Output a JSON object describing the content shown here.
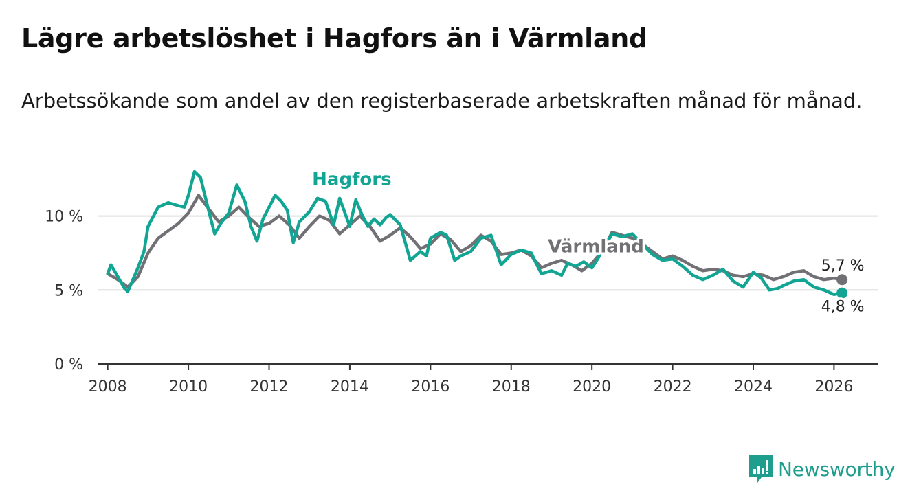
{
  "title": "Lägre arbetslöshet i Hagfors än i Värmland",
  "subtitle": "Arbetssökande som andel av den registerbaserade arbetskraften månad för månad.",
  "brand": "Newsworthy",
  "colors": {
    "hagfors": "#12a594",
    "varmland": "#707075",
    "grid": "#dddddd",
    "axis": "#333333",
    "brand": "#1f9e8e"
  },
  "chart_data": {
    "type": "line",
    "xlabel": "",
    "ylabel": "",
    "xlim": [
      2007.75,
      2027.1
    ],
    "ylim": [
      0,
      13
    ],
    "xticks": [
      2008,
      2010,
      2012,
      2014,
      2016,
      2018,
      2020,
      2022,
      2024,
      2026
    ],
    "xtick_labels": [
      "2008",
      "2010",
      "2012",
      "2014",
      "2016",
      "2018",
      "2020",
      "2022",
      "2024",
      "2026"
    ],
    "yticks": [
      0,
      5,
      10
    ],
    "ytick_labels": [
      "0 %",
      "5 %",
      "10 %"
    ],
    "series": [
      {
        "name": "Värmland",
        "label": "Värmland",
        "end_label": "5,7 %",
        "end_value": 5.7,
        "points": [
          [
            2008.0,
            6.1
          ],
          [
            2008.25,
            5.7
          ],
          [
            2008.5,
            5.2
          ],
          [
            2008.75,
            5.9
          ],
          [
            2009.0,
            7.5
          ],
          [
            2009.25,
            8.5
          ],
          [
            2009.5,
            9.0
          ],
          [
            2009.75,
            9.5
          ],
          [
            2010.0,
            10.2
          ],
          [
            2010.25,
            11.4
          ],
          [
            2010.5,
            10.5
          ],
          [
            2010.75,
            9.6
          ],
          [
            2011.0,
            10.0
          ],
          [
            2011.25,
            10.6
          ],
          [
            2011.5,
            9.9
          ],
          [
            2011.75,
            9.3
          ],
          [
            2012.0,
            9.5
          ],
          [
            2012.25,
            10.0
          ],
          [
            2012.5,
            9.4
          ],
          [
            2012.75,
            8.5
          ],
          [
            2013.0,
            9.3
          ],
          [
            2013.25,
            10.0
          ],
          [
            2013.5,
            9.7
          ],
          [
            2013.75,
            8.8
          ],
          [
            2014.0,
            9.4
          ],
          [
            2014.25,
            10.0
          ],
          [
            2014.5,
            9.3
          ],
          [
            2014.75,
            8.3
          ],
          [
            2015.0,
            8.7
          ],
          [
            2015.25,
            9.2
          ],
          [
            2015.5,
            8.6
          ],
          [
            2015.75,
            7.8
          ],
          [
            2016.0,
            8.1
          ],
          [
            2016.25,
            8.8
          ],
          [
            2016.5,
            8.4
          ],
          [
            2016.75,
            7.6
          ],
          [
            2017.0,
            8.0
          ],
          [
            2017.25,
            8.7
          ],
          [
            2017.5,
            8.3
          ],
          [
            2017.75,
            7.4
          ],
          [
            2018.0,
            7.5
          ],
          [
            2018.25,
            7.7
          ],
          [
            2018.5,
            7.3
          ],
          [
            2018.75,
            6.5
          ],
          [
            2019.0,
            6.8
          ],
          [
            2019.25,
            7.0
          ],
          [
            2019.5,
            6.7
          ],
          [
            2019.75,
            6.3
          ],
          [
            2020.0,
            6.8
          ],
          [
            2020.25,
            7.6
          ],
          [
            2020.5,
            8.9
          ],
          [
            2020.75,
            8.7
          ],
          [
            2021.0,
            8.5
          ],
          [
            2021.25,
            8.1
          ],
          [
            2021.5,
            7.6
          ],
          [
            2021.75,
            7.1
          ],
          [
            2022.0,
            7.3
          ],
          [
            2022.25,
            7.0
          ],
          [
            2022.5,
            6.6
          ],
          [
            2022.75,
            6.3
          ],
          [
            2023.0,
            6.4
          ],
          [
            2023.25,
            6.3
          ],
          [
            2023.5,
            6.0
          ],
          [
            2023.75,
            5.9
          ],
          [
            2024.0,
            6.1
          ],
          [
            2024.25,
            6.0
          ],
          [
            2024.5,
            5.7
          ],
          [
            2024.75,
            5.9
          ],
          [
            2025.0,
            6.2
          ],
          [
            2025.25,
            6.3
          ],
          [
            2025.5,
            5.9
          ],
          [
            2025.75,
            5.7
          ],
          [
            2026.0,
            5.8
          ],
          [
            2026.2,
            5.7
          ]
        ]
      },
      {
        "name": "Hagfors",
        "label": "Hagfors",
        "end_label": "4,8 %",
        "end_value": 4.8,
        "points": [
          [
            2008.0,
            6.1
          ],
          [
            2008.08,
            6.7
          ],
          [
            2008.25,
            5.9
          ],
          [
            2008.42,
            5.1
          ],
          [
            2008.5,
            4.9
          ],
          [
            2008.75,
            6.5
          ],
          [
            2008.9,
            7.6
          ],
          [
            2009.0,
            9.3
          ],
          [
            2009.25,
            10.6
          ],
          [
            2009.5,
            10.9
          ],
          [
            2009.75,
            10.7
          ],
          [
            2009.9,
            10.6
          ],
          [
            2010.0,
            11.4
          ],
          [
            2010.15,
            13.0
          ],
          [
            2010.3,
            12.6
          ],
          [
            2010.5,
            10.4
          ],
          [
            2010.65,
            8.8
          ],
          [
            2010.8,
            9.5
          ],
          [
            2011.0,
            10.2
          ],
          [
            2011.2,
            12.1
          ],
          [
            2011.4,
            11.0
          ],
          [
            2011.55,
            9.3
          ],
          [
            2011.7,
            8.3
          ],
          [
            2011.85,
            9.8
          ],
          [
            2012.0,
            10.6
          ],
          [
            2012.15,
            11.4
          ],
          [
            2012.3,
            11.0
          ],
          [
            2012.45,
            10.4
          ],
          [
            2012.6,
            8.2
          ],
          [
            2012.75,
            9.6
          ],
          [
            2013.0,
            10.3
          ],
          [
            2013.2,
            11.2
          ],
          [
            2013.4,
            11.0
          ],
          [
            2013.6,
            9.4
          ],
          [
            2013.75,
            11.2
          ],
          [
            2014.0,
            9.3
          ],
          [
            2014.15,
            11.1
          ],
          [
            2014.3,
            10.1
          ],
          [
            2014.45,
            9.3
          ],
          [
            2014.6,
            9.8
          ],
          [
            2014.75,
            9.4
          ],
          [
            2014.9,
            9.9
          ],
          [
            2015.0,
            10.1
          ],
          [
            2015.25,
            9.4
          ],
          [
            2015.5,
            7.0
          ],
          [
            2015.75,
            7.6
          ],
          [
            2015.9,
            7.3
          ],
          [
            2016.0,
            8.5
          ],
          [
            2016.25,
            8.9
          ],
          [
            2016.4,
            8.7
          ],
          [
            2016.6,
            7.0
          ],
          [
            2016.75,
            7.3
          ],
          [
            2017.0,
            7.6
          ],
          [
            2017.25,
            8.5
          ],
          [
            2017.5,
            8.7
          ],
          [
            2017.75,
            6.7
          ],
          [
            2018.0,
            7.4
          ],
          [
            2018.25,
            7.7
          ],
          [
            2018.5,
            7.5
          ],
          [
            2018.6,
            6.9
          ],
          [
            2018.75,
            6.1
          ],
          [
            2019.0,
            6.3
          ],
          [
            2019.25,
            6.0
          ],
          [
            2019.4,
            6.8
          ],
          [
            2019.6,
            6.6
          ],
          [
            2019.8,
            6.9
          ],
          [
            2020.0,
            6.5
          ],
          [
            2020.1,
            6.9
          ],
          [
            2020.25,
            7.6
          ],
          [
            2020.5,
            8.8
          ],
          [
            2020.75,
            8.6
          ],
          [
            2021.0,
            8.8
          ],
          [
            2021.25,
            8.1
          ],
          [
            2021.5,
            7.4
          ],
          [
            2021.75,
            7.0
          ],
          [
            2022.0,
            7.1
          ],
          [
            2022.25,
            6.6
          ],
          [
            2022.5,
            6.0
          ],
          [
            2022.75,
            5.7
          ],
          [
            2023.0,
            6.0
          ],
          [
            2023.25,
            6.4
          ],
          [
            2023.5,
            5.6
          ],
          [
            2023.75,
            5.2
          ],
          [
            2024.0,
            6.2
          ],
          [
            2024.2,
            5.8
          ],
          [
            2024.4,
            5.0
          ],
          [
            2024.6,
            5.1
          ],
          [
            2024.75,
            5.3
          ],
          [
            2025.0,
            5.6
          ],
          [
            2025.25,
            5.7
          ],
          [
            2025.5,
            5.2
          ],
          [
            2025.75,
            5.0
          ],
          [
            2026.0,
            4.7
          ],
          [
            2026.2,
            4.8
          ]
        ]
      }
    ]
  }
}
